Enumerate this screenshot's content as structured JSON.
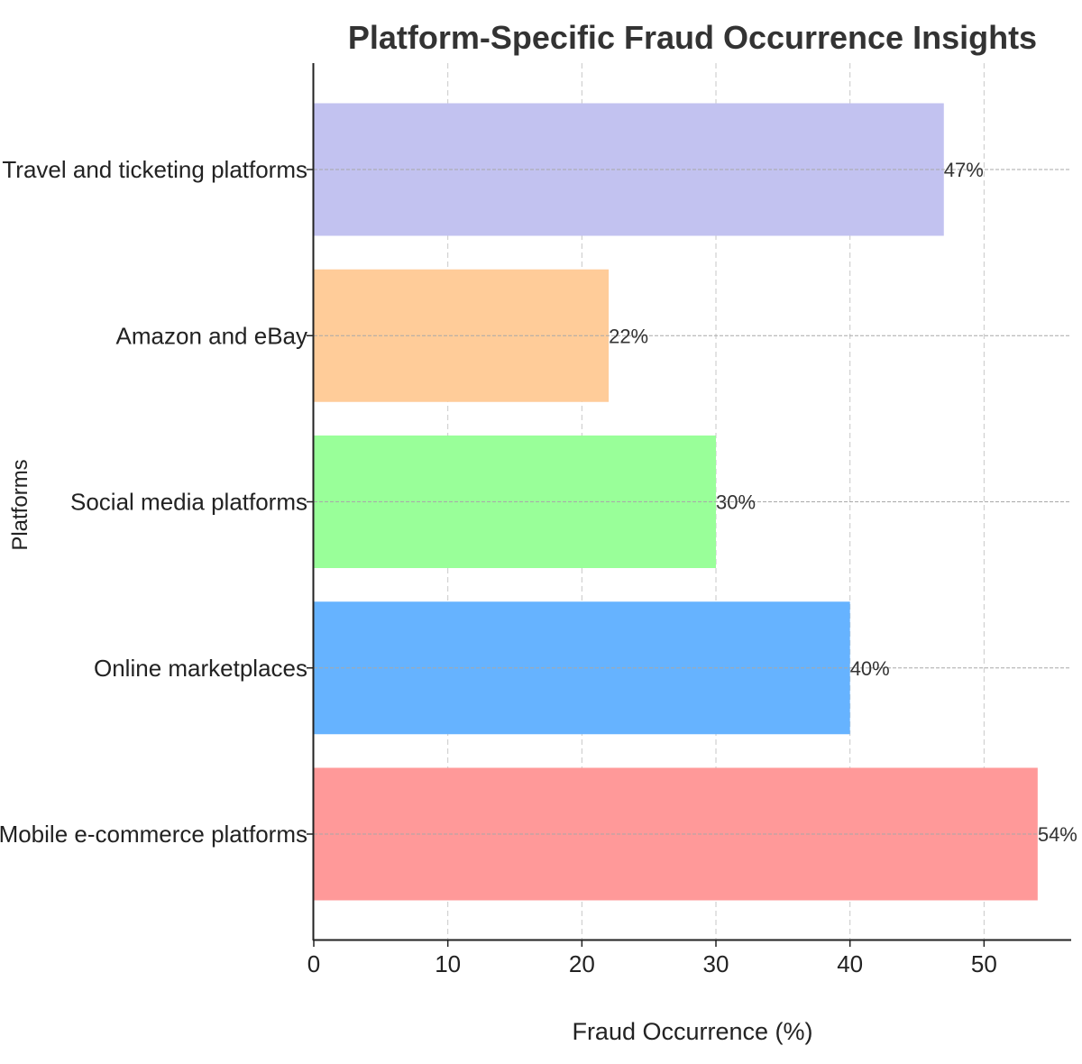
{
  "chart_data": {
    "type": "bar",
    "orientation": "horizontal",
    "title": "Platform-Specific Fraud Occurrence Insights",
    "xlabel": "Fraud Occurrence (%)",
    "ylabel": "Platforms",
    "categories": [
      "Mobile e-commerce platforms",
      "Online marketplaces",
      "Social media platforms",
      "Amazon and eBay",
      "Travel and ticketing platforms"
    ],
    "values": [
      54,
      40,
      30,
      22,
      47
    ],
    "data_labels": [
      "54%",
      "40%",
      "30%",
      "22%",
      "47%"
    ],
    "colors": [
      "#ff9999",
      "#66b3ff",
      "#99ff99",
      "#ffcc99",
      "#c2c2f0"
    ],
    "xlim": [
      0,
      56.5
    ],
    "xticks": [
      0,
      10,
      20,
      30,
      40,
      50
    ],
    "xtick_labels": [
      "0",
      "10",
      "20",
      "30",
      "40",
      "50"
    ],
    "grid": true,
    "legend": "none"
  }
}
